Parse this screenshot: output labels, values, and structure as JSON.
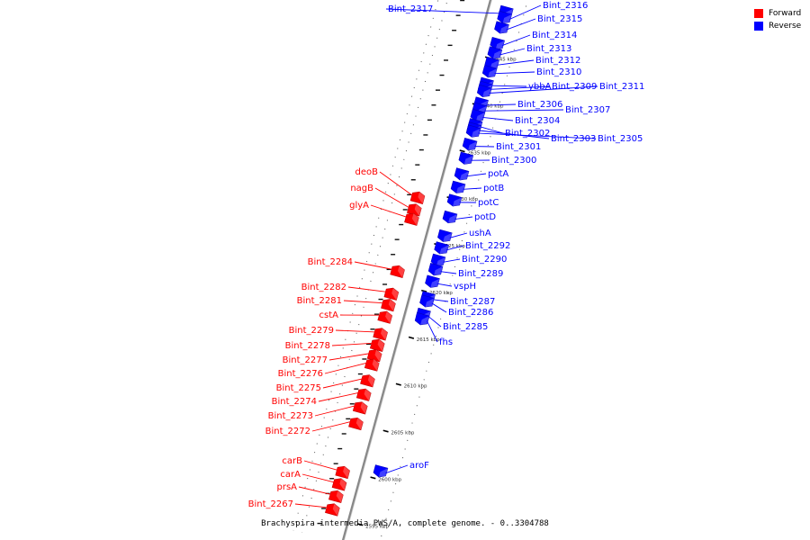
{
  "caption": "Brachyspira intermedia PWS/A, complete genome. - 0..3304788",
  "legend": [
    {
      "label": "Forward",
      "color": "#ff0000"
    },
    {
      "label": "Reverse",
      "color": "#0000ff"
    }
  ],
  "colors": {
    "forward": "#ff0000",
    "reverse": "#0000ff",
    "backbone": "#888888",
    "ticks": "#000000"
  },
  "kbp_ticks": [
    {
      "kbp": 2645,
      "label": "2645 kbp"
    },
    {
      "kbp": 2640,
      "label": "2640 kbp"
    },
    {
      "kbp": 2635,
      "label": "2635 kbp"
    },
    {
      "kbp": 2630,
      "label": "2630 kbp"
    },
    {
      "kbp": 2625,
      "label": "2625 kbp"
    },
    {
      "kbp": 2620,
      "label": "2620 kbp"
    },
    {
      "kbp": 2615,
      "label": "2615 kbp"
    },
    {
      "kbp": 2610,
      "label": "2610 kbp"
    },
    {
      "kbp": 2605,
      "label": "2605 kbp"
    },
    {
      "kbp": 2600,
      "label": "2600 kbp"
    },
    {
      "kbp": 2595,
      "label": "2595 kbp"
    }
  ],
  "genes": [
    {
      "name": "Bint_2317",
      "strand": "reverse",
      "kbp": 2650.0
    },
    {
      "name": "Bint_2316",
      "strand": "reverse",
      "kbp": 2649.4
    },
    {
      "name": "Bint_2315",
      "strand": "reverse",
      "kbp": 2648.3
    },
    {
      "name": "Bint_2314",
      "strand": "reverse",
      "kbp": 2646.6
    },
    {
      "name": "Bint_2313",
      "strand": "reverse",
      "kbp": 2645.6
    },
    {
      "name": "Bint_2312",
      "strand": "reverse",
      "kbp": 2644.5
    },
    {
      "name": "Bint_2310",
      "strand": "reverse",
      "kbp": 2643.6
    },
    {
      "name": "ybbA",
      "strand": "reverse",
      "kbp": 2642.3
    },
    {
      "name": "Bint_2309",
      "strand": "reverse",
      "kbp": 2641.9
    },
    {
      "name": "Bint_2311",
      "strand": "reverse",
      "kbp": 2641.5
    },
    {
      "name": "Bint_2306",
      "strand": "reverse",
      "kbp": 2640.2
    },
    {
      "name": "Bint_2307",
      "strand": "reverse",
      "kbp": 2639.6
    },
    {
      "name": "Bint_2304",
      "strand": "reverse",
      "kbp": 2638.9
    },
    {
      "name": "Bint_2302",
      "strand": "reverse",
      "kbp": 2637.9
    },
    {
      "name": "Bint_2303",
      "strand": "reverse",
      "kbp": 2637.5
    },
    {
      "name": "Bint_2305",
      "strand": "reverse",
      "kbp": 2637.2
    },
    {
      "name": "Bint_2301",
      "strand": "reverse",
      "kbp": 2635.8
    },
    {
      "name": "Bint_2300",
      "strand": "reverse",
      "kbp": 2634.3
    },
    {
      "name": "potA",
      "strand": "reverse",
      "kbp": 2632.6
    },
    {
      "name": "potB",
      "strand": "reverse",
      "kbp": 2631.2
    },
    {
      "name": "potC",
      "strand": "reverse",
      "kbp": 2629.8
    },
    {
      "name": "potD",
      "strand": "reverse",
      "kbp": 2628.0
    },
    {
      "name": "ushA",
      "strand": "reverse",
      "kbp": 2626.0
    },
    {
      "name": "Bint_2292",
      "strand": "reverse",
      "kbp": 2624.7
    },
    {
      "name": "Bint_2290",
      "strand": "reverse",
      "kbp": 2623.4
    },
    {
      "name": "Bint_2289",
      "strand": "reverse",
      "kbp": 2622.4
    },
    {
      "name": "vspH",
      "strand": "reverse",
      "kbp": 2621.1
    },
    {
      "name": "Bint_2287",
      "strand": "reverse",
      "kbp": 2619.4
    },
    {
      "name": "Bint_2286",
      "strand": "reverse",
      "kbp": 2619.0
    },
    {
      "name": "Bint_2285",
      "strand": "reverse",
      "kbp": 2617.6
    },
    {
      "name": "fhs",
      "strand": "reverse",
      "kbp": 2617.1
    },
    {
      "name": "aroF",
      "strand": "reverse",
      "kbp": 2600.8
    },
    {
      "name": "deoB",
      "strand": "forward",
      "kbp": 2629.2
    },
    {
      "name": "nagB",
      "strand": "forward",
      "kbp": 2627.9
    },
    {
      "name": "glyA",
      "strand": "forward",
      "kbp": 2626.9
    },
    {
      "name": "Bint_2284",
      "strand": "forward",
      "kbp": 2621.3
    },
    {
      "name": "Bint_2282",
      "strand": "forward",
      "kbp": 2618.9
    },
    {
      "name": "Bint_2281",
      "strand": "forward",
      "kbp": 2617.7
    },
    {
      "name": "cstA",
      "strand": "forward",
      "kbp": 2616.4
    },
    {
      "name": "Bint_2279",
      "strand": "forward",
      "kbp": 2614.6
    },
    {
      "name": "Bint_2278",
      "strand": "forward",
      "kbp": 2613.4
    },
    {
      "name": "Bint_2277",
      "strand": "forward",
      "kbp": 2612.3
    },
    {
      "name": "Bint_2276",
      "strand": "forward",
      "kbp": 2611.3
    },
    {
      "name": "Bint_2275",
      "strand": "forward",
      "kbp": 2609.6
    },
    {
      "name": "Bint_2274",
      "strand": "forward",
      "kbp": 2608.1
    },
    {
      "name": "Bint_2273",
      "strand": "forward",
      "kbp": 2606.7
    },
    {
      "name": "Bint_2272",
      "strand": "forward",
      "kbp": 2605.0
    },
    {
      "name": "carB",
      "strand": "forward",
      "kbp": 2599.8
    },
    {
      "name": "carA",
      "strand": "forward",
      "kbp": 2598.5
    },
    {
      "name": "prsA",
      "strand": "forward",
      "kbp": 2597.2
    },
    {
      "name": "Bint_2267",
      "strand": "forward",
      "kbp": 2595.8
    }
  ]
}
